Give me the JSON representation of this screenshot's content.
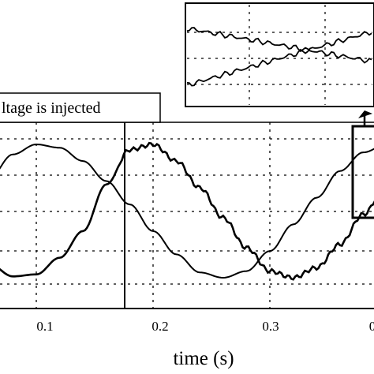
{
  "chart_data": {
    "type": "line",
    "title": "",
    "xlabel": "time (s)",
    "ylabel": "",
    "x_ticks": [
      "0.1",
      "0.2",
      "0.3",
      "0"
    ],
    "xlim": [
      0.0,
      0.47
    ],
    "ylim": [
      -1.2,
      1.2
    ],
    "grid": true,
    "series": [
      {
        "x": [
          0.0,
          0.02,
          0.04,
          0.06,
          0.08,
          0.1,
          0.12,
          0.14,
          0.16,
          0.18,
          0.2,
          0.22,
          0.24,
          0.26,
          0.28,
          0.3,
          0.32,
          0.34,
          0.36,
          0.38,
          0.4,
          0.42,
          0.44
        ],
        "values": [
          -0.7,
          -0.4,
          0.05,
          0.5,
          0.85,
          1.0,
          0.95,
          0.75,
          0.45,
          0.1,
          -0.3,
          -0.65,
          -0.92,
          -1.0,
          -0.9,
          -0.6,
          -0.2,
          0.2,
          0.6,
          0.88,
          1.0,
          0.9,
          0.65
        ]
      },
      {
        "x": [
          0.0,
          0.02,
          0.04,
          0.06,
          0.08,
          0.1,
          0.12,
          0.14,
          0.16,
          0.18,
          0.2,
          0.22,
          0.24,
          0.26,
          0.28,
          0.3,
          0.32,
          0.34,
          0.36,
          0.38,
          0.4,
          0.42,
          0.44
        ],
        "values": [
          0.35,
          -0.05,
          -0.45,
          -0.8,
          -0.98,
          -0.95,
          -0.7,
          -0.3,
          0.4,
          0.92,
          1.0,
          0.75,
          0.35,
          -0.1,
          -0.55,
          -0.9,
          -1.0,
          -0.85,
          -0.5,
          -0.05,
          0.4,
          0.8,
          0.98
        ]
      }
    ],
    "annotations": [
      {
        "text": "ltage is injected",
        "x": 0.175
      }
    ],
    "inset": {
      "description_visible": "zoomed view of crossing region"
    }
  }
}
